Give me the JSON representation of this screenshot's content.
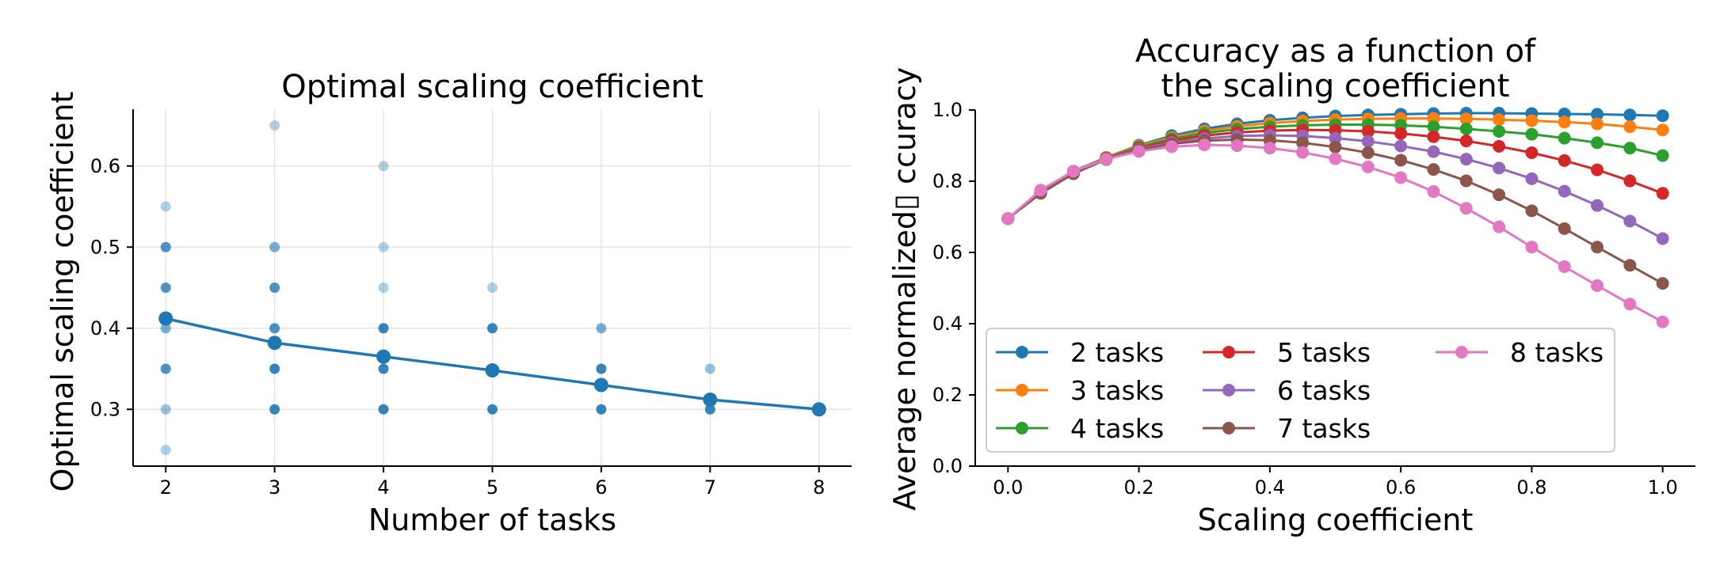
{
  "chart_data": [
    {
      "type": "scatter",
      "title": "Optimal scaling coefficient",
      "xlabel": "Number of tasks",
      "ylabel": "Optimal scaling coefficient",
      "xlim": [
        1.7,
        8.3
      ],
      "ylim": [
        0.23,
        0.67
      ],
      "xticks": [
        "2",
        "3",
        "4",
        "5",
        "6",
        "7",
        "8"
      ],
      "yticks": [
        "0.3",
        "0.4",
        "0.5",
        "0.6"
      ],
      "grid": true,
      "color": "#1f77b4",
      "points": [
        {
          "x": 2,
          "y": 0.55,
          "opacity": 0.35
        },
        {
          "x": 2,
          "y": 0.5,
          "opacity": 0.8
        },
        {
          "x": 2,
          "y": 0.45,
          "opacity": 0.8
        },
        {
          "x": 2,
          "y": 0.4,
          "opacity": 0.6
        },
        {
          "x": 2,
          "y": 0.35,
          "opacity": 0.8
        },
        {
          "x": 2,
          "y": 0.3,
          "opacity": 0.45
        },
        {
          "x": 2,
          "y": 0.25,
          "opacity": 0.35
        },
        {
          "x": 3,
          "y": 0.65,
          "opacity": 0.35
        },
        {
          "x": 3,
          "y": 0.5,
          "opacity": 0.6
        },
        {
          "x": 3,
          "y": 0.45,
          "opacity": 0.8
        },
        {
          "x": 3,
          "y": 0.4,
          "opacity": 0.8
        },
        {
          "x": 3,
          "y": 0.35,
          "opacity": 0.9
        },
        {
          "x": 3,
          "y": 0.3,
          "opacity": 0.9
        },
        {
          "x": 4,
          "y": 0.6,
          "opacity": 0.35
        },
        {
          "x": 4,
          "y": 0.5,
          "opacity": 0.35
        },
        {
          "x": 4,
          "y": 0.45,
          "opacity": 0.35
        },
        {
          "x": 4,
          "y": 0.4,
          "opacity": 0.9
        },
        {
          "x": 4,
          "y": 0.35,
          "opacity": 0.9
        },
        {
          "x": 4,
          "y": 0.3,
          "opacity": 0.9
        },
        {
          "x": 5,
          "y": 0.45,
          "opacity": 0.35
        },
        {
          "x": 5,
          "y": 0.4,
          "opacity": 0.9
        },
        {
          "x": 5,
          "y": 0.35,
          "opacity": 0.9
        },
        {
          "x": 5,
          "y": 0.3,
          "opacity": 0.9
        },
        {
          "x": 6,
          "y": 0.4,
          "opacity": 0.6
        },
        {
          "x": 6,
          "y": 0.35,
          "opacity": 0.9
        },
        {
          "x": 6,
          "y": 0.3,
          "opacity": 0.9
        },
        {
          "x": 7,
          "y": 0.35,
          "opacity": 0.45
        },
        {
          "x": 7,
          "y": 0.3,
          "opacity": 0.9
        },
        {
          "x": 8,
          "y": 0.3,
          "opacity": 1.0
        }
      ],
      "mean_line": {
        "x": [
          2,
          3,
          4,
          5,
          6,
          7,
          8
        ],
        "y": [
          0.412,
          0.382,
          0.365,
          0.348,
          0.33,
          0.312,
          0.3
        ]
      }
    },
    {
      "type": "line",
      "title": "Accuracy as a function of\nthe scaling coefficient",
      "title_lines": [
        "Accuracy as a function of",
        "the scaling coefficient"
      ],
      "xlabel": "Scaling coefficient",
      "ylabel": "Average normalized▯ ccuracy",
      "xlim": [
        -0.05,
        1.05
      ],
      "ylim": [
        0.0,
        1.0
      ],
      "xticks": [
        "0.0",
        "0.2",
        "0.4",
        "0.6",
        "0.8",
        "1.0"
      ],
      "yticks": [
        "0.0",
        "0.2",
        "0.4",
        "0.6",
        "0.8",
        "1.0"
      ],
      "grid": false,
      "legend": "lower-left, 3 columns",
      "x": [
        0.0,
        0.05,
        0.1,
        0.15,
        0.2,
        0.25,
        0.3,
        0.35,
        0.4,
        0.45,
        0.5,
        0.55,
        0.6,
        0.65,
        0.7,
        0.75,
        0.8,
        0.85,
        0.9,
        0.95,
        1.0
      ],
      "series": [
        {
          "name": "2 tasks",
          "color": "#1f77b4",
          "values": [
            0.695,
            0.772,
            0.828,
            0.867,
            0.901,
            0.928,
            0.947,
            0.961,
            0.971,
            0.978,
            0.983,
            0.986,
            0.988,
            0.99,
            0.991,
            0.991,
            0.99,
            0.989,
            0.988,
            0.986,
            0.984
          ]
        },
        {
          "name": "3 tasks",
          "color": "#ff7f0e",
          "values": [
            0.695,
            0.77,
            0.826,
            0.867,
            0.899,
            0.923,
            0.941,
            0.954,
            0.963,
            0.969,
            0.973,
            0.975,
            0.976,
            0.976,
            0.975,
            0.973,
            0.97,
            0.966,
            0.961,
            0.953,
            0.944
          ]
        },
        {
          "name": "4 tasks",
          "color": "#2ca02c",
          "values": [
            0.695,
            0.769,
            0.825,
            0.865,
            0.896,
            0.919,
            0.935,
            0.946,
            0.953,
            0.957,
            0.959,
            0.959,
            0.957,
            0.953,
            0.947,
            0.94,
            0.932,
            0.921,
            0.908,
            0.893,
            0.872
          ]
        },
        {
          "name": "5 tasks",
          "color": "#d62728",
          "values": [
            0.695,
            0.768,
            0.824,
            0.864,
            0.893,
            0.914,
            0.928,
            0.937,
            0.942,
            0.944,
            0.943,
            0.94,
            0.934,
            0.925,
            0.913,
            0.898,
            0.88,
            0.858,
            0.832,
            0.801,
            0.766
          ]
        },
        {
          "name": "6 tasks",
          "color": "#9467bd",
          "values": [
            0.695,
            0.767,
            0.822,
            0.862,
            0.89,
            0.909,
            0.92,
            0.927,
            0.929,
            0.927,
            0.921,
            0.912,
            0.899,
            0.883,
            0.862,
            0.837,
            0.807,
            0.772,
            0.732,
            0.688,
            0.639
          ]
        },
        {
          "name": "7 tasks",
          "color": "#8c564b",
          "values": [
            0.695,
            0.766,
            0.821,
            0.861,
            0.888,
            0.905,
            0.914,
            0.917,
            0.915,
            0.908,
            0.896,
            0.88,
            0.859,
            0.833,
            0.801,
            0.762,
            0.717,
            0.667,
            0.615,
            0.564,
            0.513
          ]
        },
        {
          "name": "8 tasks",
          "color": "#e377c2",
          "values": [
            0.695,
            0.775,
            0.828,
            0.862,
            0.884,
            0.897,
            0.902,
            0.9,
            0.893,
            0.881,
            0.863,
            0.84,
            0.81,
            0.771,
            0.724,
            0.672,
            0.615,
            0.56,
            0.507,
            0.455,
            0.405
          ]
        }
      ]
    }
  ]
}
